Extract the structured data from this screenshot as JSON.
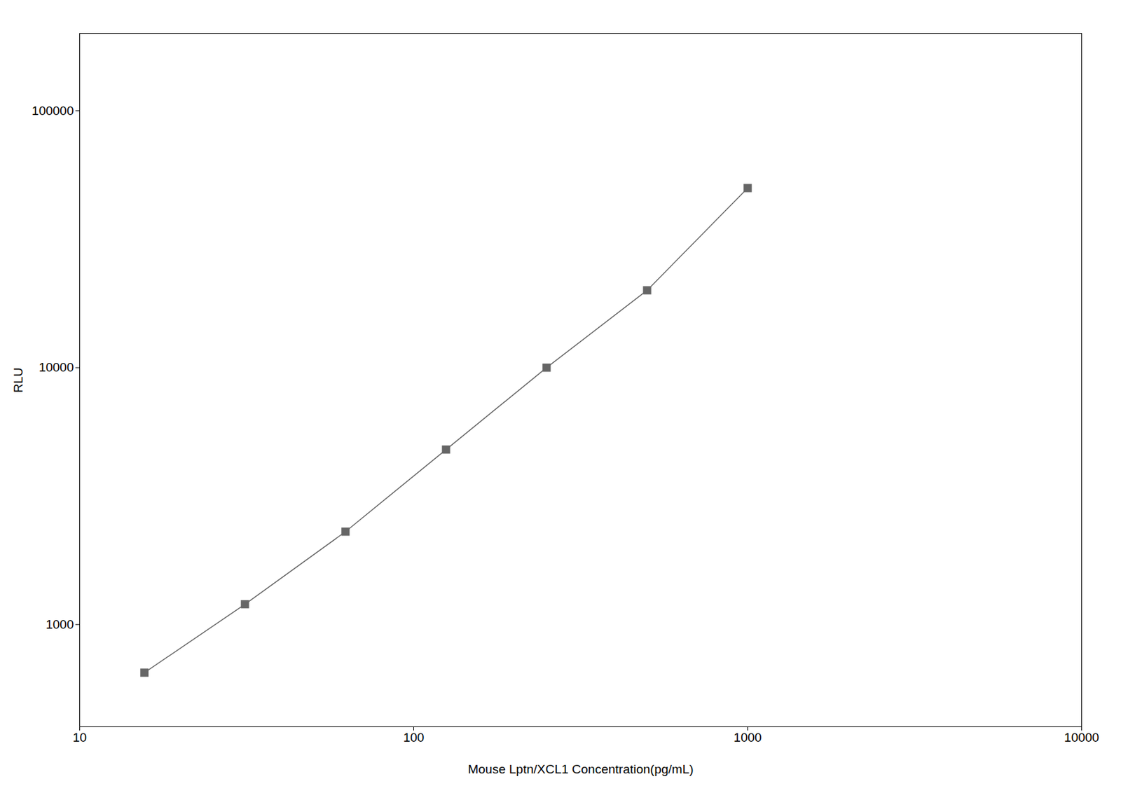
{
  "chart_data": {
    "type": "line",
    "x": [
      15.625,
      31.25,
      62.5,
      125,
      250,
      500,
      1000
    ],
    "values": [
      650,
      1200,
      2300,
      4800,
      10000,
      20000,
      50000
    ],
    "xlabel": "Mouse Lptn/XCL1 Concentration(pg/mL)",
    "ylabel": "RLU",
    "xlim": [
      10,
      10000
    ],
    "ylim": [
      400,
      200000
    ],
    "xticks": [
      10,
      100,
      1000,
      10000
    ],
    "yticks": [
      1000,
      10000,
      100000
    ],
    "log": true,
    "grid": false,
    "color": "#666666",
    "marker": "square"
  }
}
